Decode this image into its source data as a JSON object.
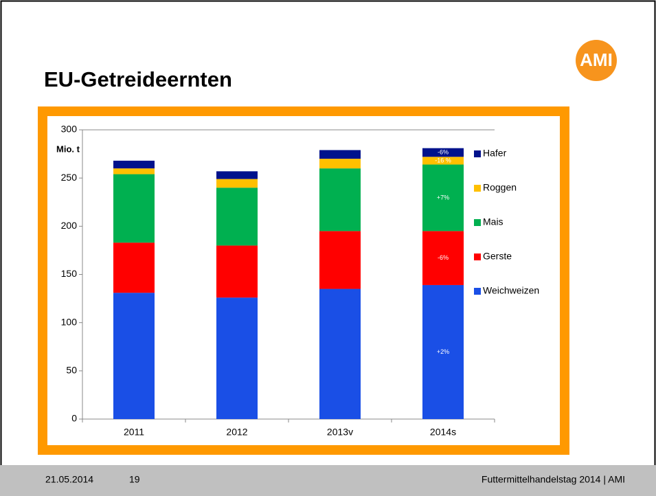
{
  "slide_title": "EU-Getreideernten",
  "logo": "AMI",
  "footer": {
    "date": "21.05.2014",
    "page": "19",
    "text": "Futtermittelhandelstag 2014 | AMI"
  },
  "chart_data": {
    "type": "stacked_bar",
    "y_label": "Mio. t",
    "categories": [
      "2011",
      "2012",
      "2013v",
      "2014s"
    ],
    "series": [
      {
        "name": "Weichweizen",
        "color": "#1a4fe6",
        "values": [
          131,
          126,
          135,
          139
        ]
      },
      {
        "name": "Gerste",
        "color": "#ff0000",
        "values": [
          52,
          54,
          60,
          56
        ]
      },
      {
        "name": "Mais",
        "color": "#00b050",
        "values": [
          71,
          60,
          65,
          69
        ]
      },
      {
        "name": "Roggen",
        "color": "#ffc000",
        "values": [
          6,
          9,
          10,
          8
        ]
      },
      {
        "name": "Hafer",
        "color": "#00128c",
        "values": [
          8,
          8,
          9,
          9
        ]
      }
    ],
    "annotations": [
      "+2%",
      "-6%",
      "+7%",
      "-16 %",
      "-6%"
    ],
    "ylim": [
      0,
      300
    ],
    "yticks": [
      0,
      50,
      100,
      150,
      200,
      250,
      300
    ],
    "grid": false,
    "legend": "right"
  }
}
